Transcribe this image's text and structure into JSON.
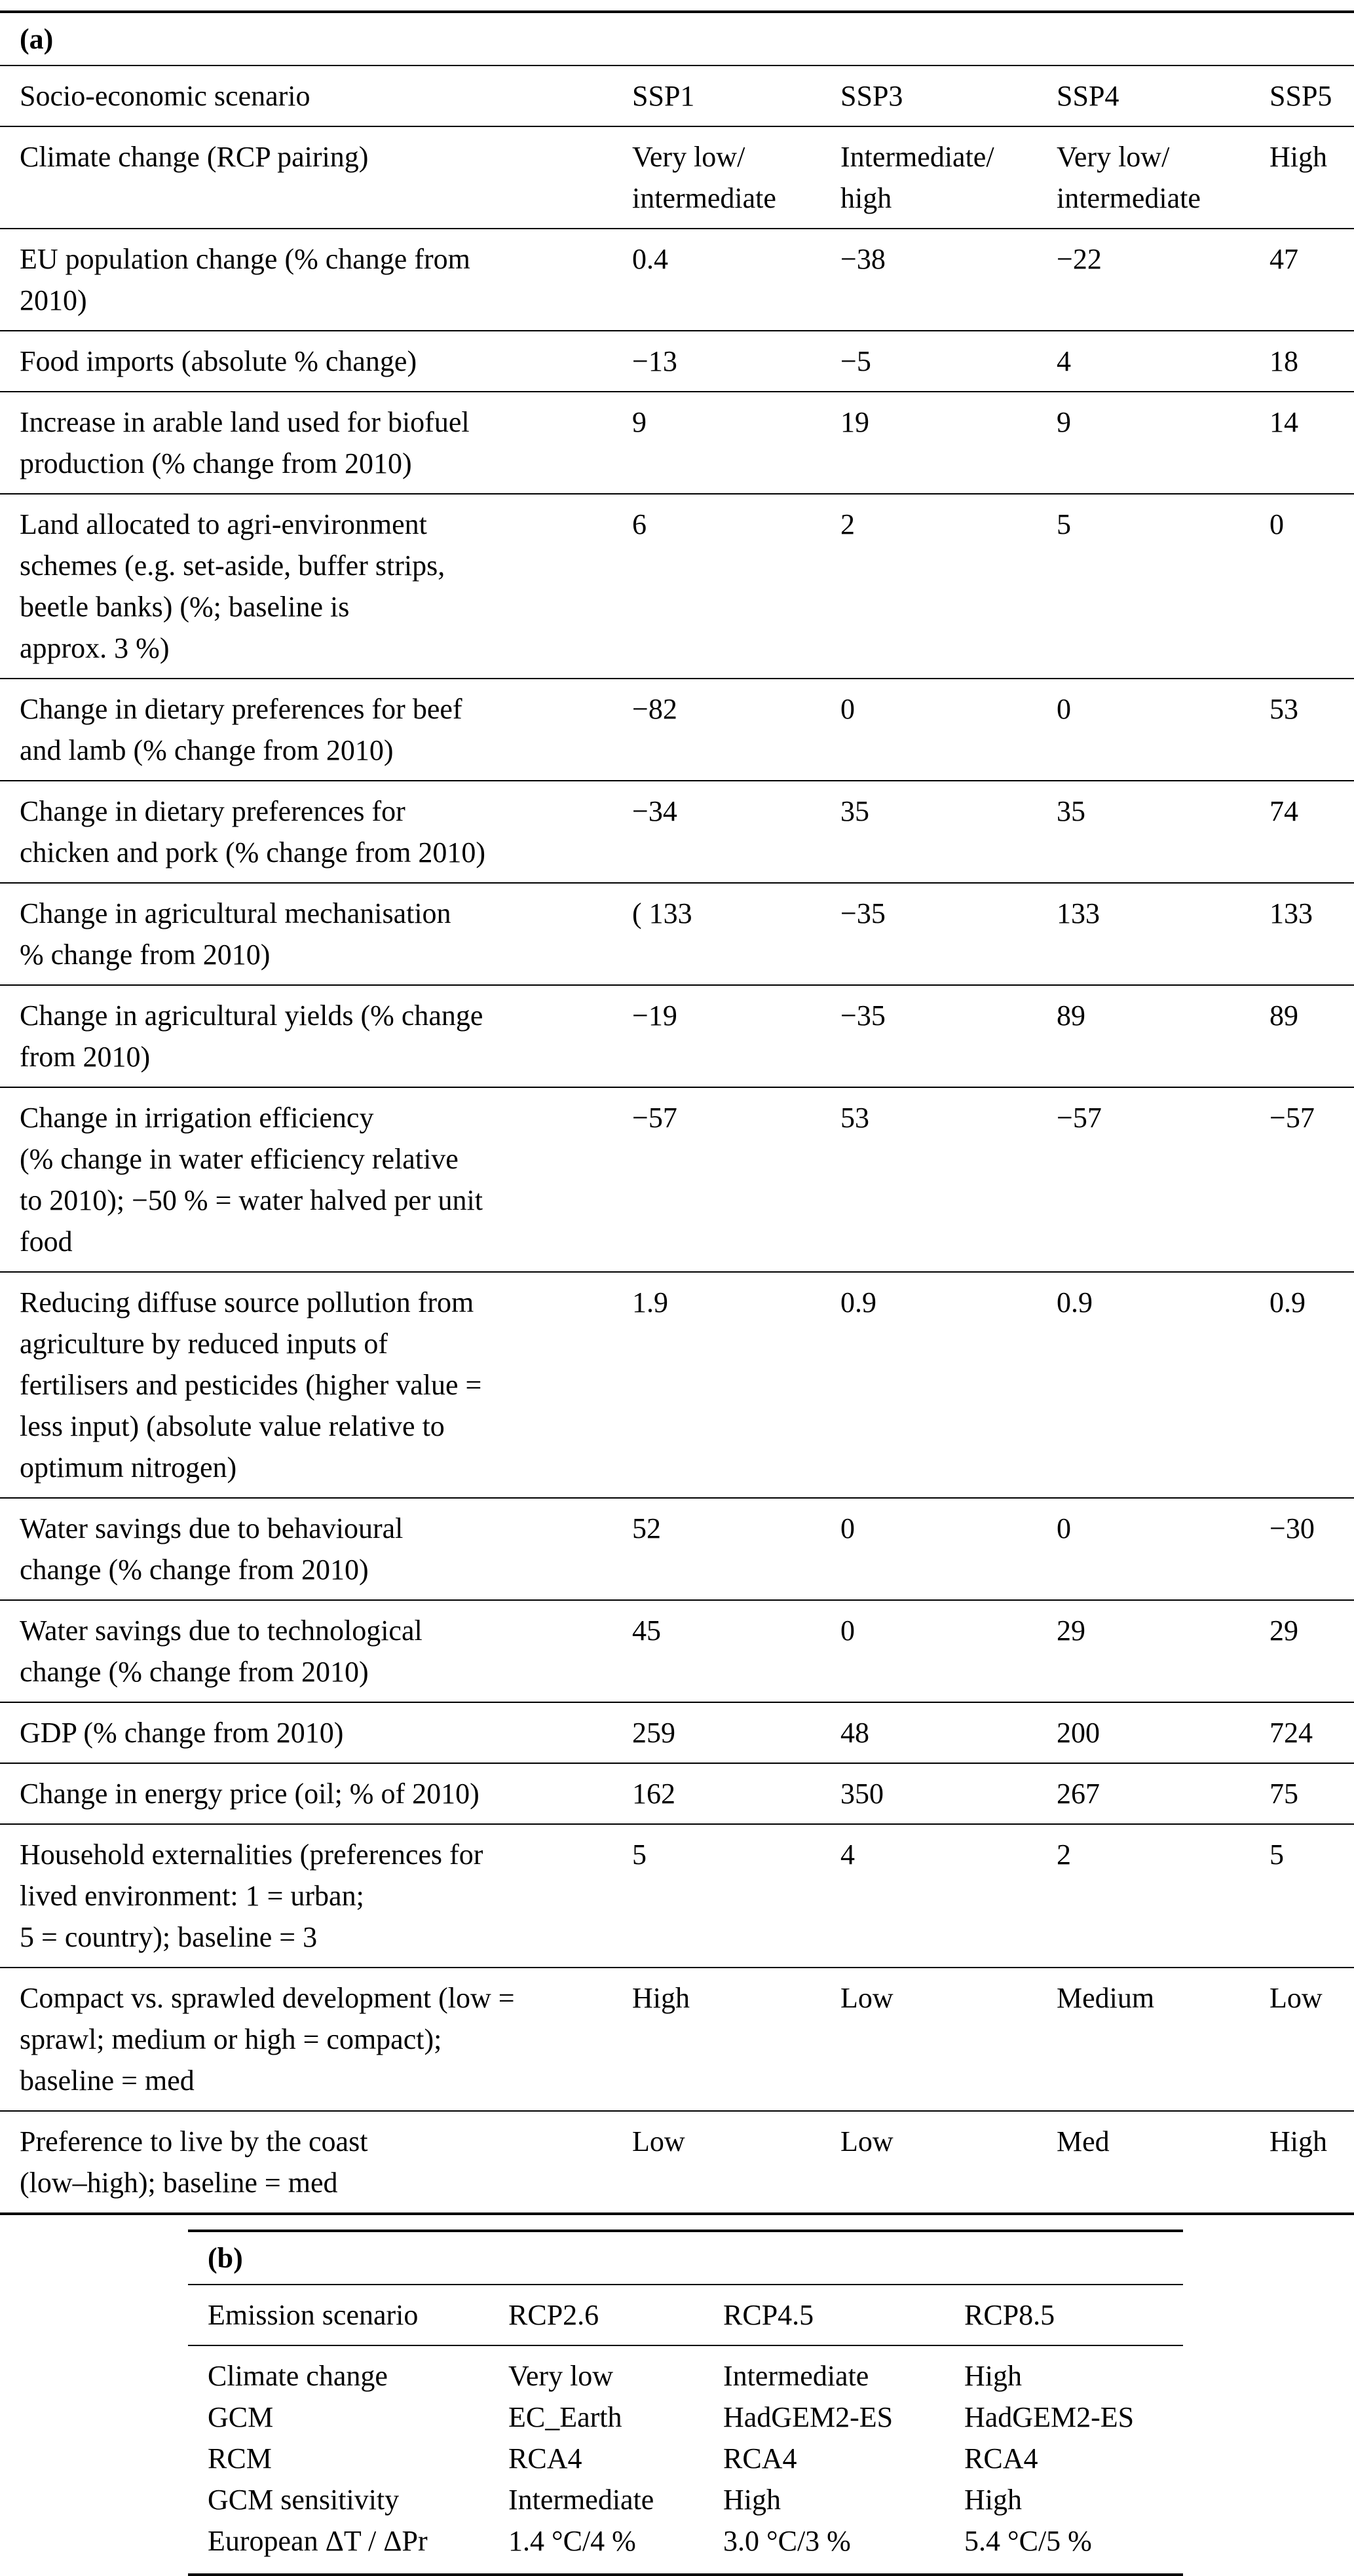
{
  "style": {
    "background": "#ffffff",
    "text_color": "#000000",
    "rule_color": "#000000"
  },
  "table_a": {
    "label": "(a)",
    "header": {
      "label": "Socio-economic scenario",
      "columns": [
        "SSP1",
        "SSP3",
        "SSP4",
        "SSP5"
      ]
    },
    "rows": [
      {
        "label": "Climate change (RCP pairing)",
        "values": [
          "Very low/\nintermediate",
          "Intermediate/\nhigh",
          "Very low/\nintermediate",
          "High"
        ]
      },
      {
        "label": "EU population change (% change from\n2010)",
        "values": [
          "0.4",
          "−38",
          "−22",
          "47"
        ]
      },
      {
        "label": "Food imports (absolute % change)",
        "values": [
          "−13",
          "−5",
          "4",
          "18"
        ]
      },
      {
        "label": "Increase in arable land used for biofuel\nproduction (% change from 2010)",
        "values": [
          "9",
          "19",
          "9",
          "14"
        ]
      },
      {
        "label": "Land allocated to agri-environment\nschemes (e.g. set-aside, buffer strips,\nbeetle banks) (%; baseline is\napprox. 3 %)",
        "values": [
          "6",
          "2",
          "5",
          "0"
        ]
      },
      {
        "label": "Change in dietary preferences for beef\nand lamb (% change from 2010)",
        "values": [
          "−82",
          "0",
          "0",
          "53"
        ]
      },
      {
        "label": "Change in dietary preferences for\nchicken and pork (% change from 2010)",
        "values": [
          "−34",
          "35",
          "35",
          "74"
        ]
      },
      {
        "label": "Change in agricultural mechanisation\n% change from 2010)",
        "values": [
          "( 133",
          "−35",
          "133",
          "133"
        ]
      },
      {
        "label": "Change in agricultural yields (% change\nfrom 2010)",
        "values": [
          "−19",
          "−35",
          "89",
          "89"
        ]
      },
      {
        "label": "Change in irrigation efficiency\n(% change in water efficiency relative\nto 2010); −50 % = water halved per unit\nfood",
        "values": [
          "−57",
          "53",
          "−57",
          "−57"
        ]
      },
      {
        "label": "Reducing diffuse source pollution from\nagriculture by reduced inputs of\nfertilisers and pesticides (higher value =\nless input) (absolute value relative to\noptimum nitrogen)",
        "values": [
          "1.9",
          "0.9",
          "0.9",
          "0.9"
        ]
      },
      {
        "label": "Water savings due to behavioural\nchange (% change from 2010)",
        "values": [
          "52",
          "0",
          "0",
          "−30"
        ]
      },
      {
        "label": "Water savings due to technological\nchange (% change from 2010)",
        "values": [
          "45",
          "0",
          "29",
          "29"
        ]
      },
      {
        "label": "GDP (% change from 2010)",
        "values": [
          "259",
          "48",
          "200",
          "724"
        ]
      },
      {
        "label": "Change in energy price (oil; % of 2010)",
        "values": [
          "162",
          "350",
          "267",
          "75"
        ]
      },
      {
        "label": "Household externalities (preferences for\nlived environment: 1 = urban;\n5 = country); baseline = 3",
        "values": [
          "5",
          "4",
          "2",
          "5"
        ]
      },
      {
        "label": "Compact vs. sprawled development (low =\nsprawl; medium or high = compact);\nbaseline = med",
        "values": [
          "High",
          "Low",
          "Medium",
          "Low"
        ]
      },
      {
        "label": "Preference to live by the coast\n(low–high); baseline = med",
        "values": [
          "Low",
          "Low",
          "Med",
          "High"
        ]
      }
    ]
  },
  "table_b": {
    "label": "(b)",
    "header": {
      "label": "Emission scenario",
      "columns": [
        "RCP2.6",
        "RCP4.5",
        "RCP8.5"
      ]
    },
    "rows": [
      {
        "label": "Climate change",
        "values": [
          "Very low",
          "Intermediate",
          "High"
        ]
      },
      {
        "label": "GCM",
        "values": [
          "EC_Earth",
          "HadGEM2-ES",
          "HadGEM2-ES"
        ]
      },
      {
        "label": "RCM",
        "values": [
          "RCA4",
          "RCA4",
          "RCA4"
        ]
      },
      {
        "label": "GCM sensitivity",
        "values": [
          "Intermediate",
          "High",
          "High"
        ]
      },
      {
        "label": "European ΔT / ΔPr",
        "values": [
          "1.4 °C/4 %",
          "3.0 °C/3 %",
          "5.4 °C/5 %"
        ]
      }
    ]
  }
}
